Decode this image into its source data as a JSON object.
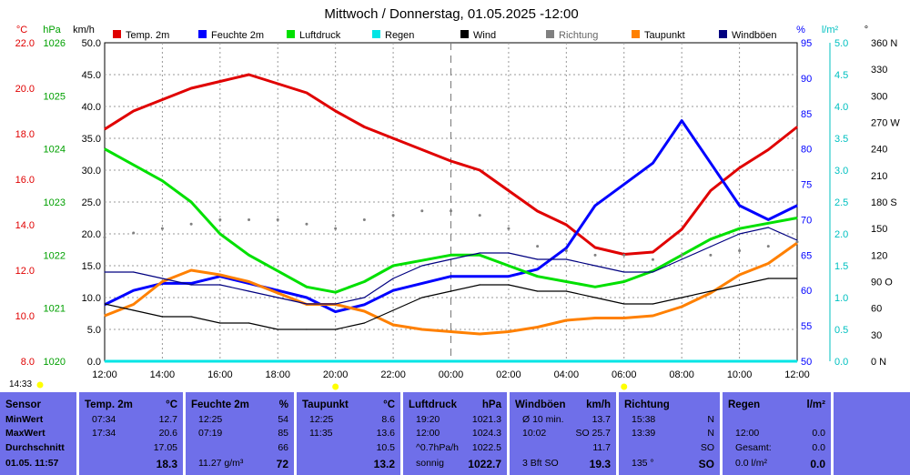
{
  "title": "Mittwoch / Donnerstag, 01.05.2025  -12:00",
  "axes": {
    "temp_unit": "°C",
    "hpa_unit": "hPa",
    "kmh_unit": "km/h",
    "pct_unit": "%",
    "rain_unit": "l/m²",
    "dir_unit": "°",
    "temp_ticks": [
      "22.0",
      "20.0",
      "18.0",
      "16.0",
      "14.0",
      "12.0",
      "10.0",
      "8.0"
    ],
    "hpa_ticks": [
      "1026",
      "1025",
      "1024",
      "1023",
      "1022",
      "1021",
      "1020"
    ],
    "kmh_ticks": [
      "50.0",
      "45.0",
      "40.0",
      "35.0",
      "30.0",
      "25.0",
      "20.0",
      "15.0",
      "10.0",
      "5.0",
      "0.0"
    ],
    "pct_ticks": [
      "95",
      "90",
      "85",
      "80",
      "75",
      "70",
      "65",
      "60",
      "55",
      "50"
    ],
    "rain_ticks": [
      "5.0",
      "4.5",
      "4.0",
      "3.5",
      "3.0",
      "2.5",
      "2.0",
      "1.5",
      "1.0",
      "0.5",
      "0.0"
    ],
    "dir_ticks": [
      "360 N",
      "330",
      "300",
      "270 W",
      "240",
      "210",
      "180 S",
      "150",
      "120",
      "90 O",
      "60",
      "30",
      "0 N"
    ],
    "x_ticks": [
      "12:00",
      "14:00",
      "16:00",
      "18:00",
      "20:00",
      "22:00",
      "00:00",
      "02:00",
      "04:00",
      "06:00",
      "08:00",
      "10:00",
      "12:00"
    ]
  },
  "sun_times": {
    "rise": "06:00",
    "set": "20:00"
  },
  "current_time_label": "14:33",
  "colors": {
    "temp": "#e00000",
    "humidity": "#0000ff",
    "pressure": "#00e000",
    "rain": "#00e5e5",
    "wind": "#000000",
    "direction": "#808080",
    "dewpoint": "#ff8000",
    "gusts": "#000080",
    "panel": "#6f6fe9"
  },
  "legend": [
    {
      "label": "Temp. 2m",
      "color": "#e00000"
    },
    {
      "label": "Feuchte 2m",
      "color": "#0000ff"
    },
    {
      "label": "Luftdruck",
      "color": "#00e000"
    },
    {
      "label": "Regen",
      "color": "#00e5e5"
    },
    {
      "label": "Wind",
      "color": "#000000"
    },
    {
      "label": "Richtung",
      "color": "#808080"
    },
    {
      "label": "Taupunkt",
      "color": "#ff8000"
    },
    {
      "label": "Windböen",
      "color": "#000080"
    }
  ],
  "chart_data": {
    "type": "line",
    "title": "Mittwoch / Donnerstag, 01.05.2025  -12:00",
    "x": [
      0,
      1,
      2,
      3,
      4,
      5,
      6,
      7,
      8,
      9,
      10,
      11,
      12,
      13,
      14,
      15,
      16,
      17,
      18,
      19,
      20,
      21,
      22,
      23,
      24
    ],
    "x_unit": "hours since 12:00",
    "series": [
      {
        "name": "Temp. 2m",
        "unit": "°C",
        "axis": "temp",
        "values": [
          18.2,
          19.0,
          19.5,
          20.0,
          20.3,
          20.6,
          20.2,
          19.8,
          19.0,
          18.3,
          17.8,
          17.3,
          16.8,
          16.4,
          15.5,
          14.6,
          14.0,
          13.0,
          12.7,
          12.8,
          13.8,
          15.5,
          16.5,
          17.3,
          18.3
        ]
      },
      {
        "name": "Feuchte 2m",
        "unit": "%",
        "axis": "pct",
        "values": [
          58,
          60,
          61,
          61,
          62,
          61,
          60,
          59,
          57,
          58,
          60,
          61,
          62,
          62,
          62,
          63,
          66,
          72,
          75,
          78,
          84,
          78,
          72,
          70,
          72
        ]
      },
      {
        "name": "Luftdruck",
        "unit": "hPa",
        "axis": "hpa",
        "values": [
          1024.0,
          1023.7,
          1023.4,
          1023.0,
          1022.4,
          1022.0,
          1021.7,
          1021.4,
          1021.3,
          1021.5,
          1021.8,
          1021.9,
          1022.0,
          1022.0,
          1021.8,
          1021.6,
          1021.5,
          1021.4,
          1021.5,
          1021.7,
          1022.0,
          1022.3,
          1022.5,
          1022.6,
          1022.7
        ]
      },
      {
        "name": "Taupunkt",
        "unit": "°C",
        "axis": "temp",
        "values": [
          10.0,
          10.5,
          11.5,
          12.0,
          11.8,
          11.5,
          11.0,
          10.5,
          10.5,
          10.2,
          9.6,
          9.4,
          9.3,
          9.2,
          9.3,
          9.5,
          9.8,
          9.9,
          9.9,
          10.0,
          10.4,
          11.0,
          11.8,
          12.3,
          13.2
        ]
      },
      {
        "name": "Wind",
        "unit": "km/h",
        "axis": "kmh",
        "values": [
          9,
          8,
          7,
          7,
          6,
          6,
          5,
          5,
          5,
          6,
          8,
          10,
          11,
          12,
          12,
          11,
          11,
          10,
          9,
          9,
          10,
          11,
          12,
          13,
          13
        ]
      },
      {
        "name": "Windböen",
        "unit": "km/h",
        "axis": "kmh",
        "values": [
          14,
          14,
          13,
          12,
          12,
          11,
          10,
          9,
          9,
          10,
          13,
          15,
          16,
          17,
          17,
          16,
          16,
          15,
          14,
          14,
          16,
          18,
          20,
          21,
          19
        ]
      },
      {
        "name": "Richtung",
        "unit": "°",
        "axis": "dir",
        "values": [
          140,
          145,
          150,
          155,
          160,
          160,
          160,
          155,
          150,
          160,
          165,
          170,
          170,
          165,
          150,
          130,
          125,
          120,
          120,
          115,
          120,
          120,
          125,
          130,
          135
        ]
      },
      {
        "name": "Regen",
        "unit": "l/m²",
        "axis": "rain",
        "values": [
          0,
          0,
          0,
          0,
          0,
          0,
          0,
          0,
          0,
          0,
          0,
          0,
          0,
          0,
          0,
          0,
          0,
          0,
          0,
          0,
          0,
          0,
          0,
          0,
          0
        ]
      }
    ],
    "ranges": {
      "temp": [
        8,
        22
      ],
      "hpa": [
        1020,
        1026
      ],
      "kmh": [
        0,
        50
      ],
      "pct": [
        50,
        95
      ],
      "rain": [
        0,
        5
      ],
      "dir": [
        0,
        360
      ]
    },
    "grid": true,
    "legend_position": "top"
  },
  "panel": {
    "sensor": {
      "header": "Sensor",
      "rows": [
        "MinWert",
        "MaxWert",
        "Durchschnitt",
        "01.05. 11:57"
      ]
    },
    "columns": [
      {
        "title": "Temp. 2m",
        "unit": "°C",
        "rows": [
          [
            "07:34",
            "12.7"
          ],
          [
            "17:34",
            "20.6"
          ],
          [
            "",
            "17.05"
          ],
          [
            "",
            "18.3"
          ]
        ]
      },
      {
        "title": "Feuchte 2m",
        "unit": "%",
        "rows": [
          [
            "12:25",
            "54"
          ],
          [
            "07:19",
            "85"
          ],
          [
            "",
            "66"
          ],
          [
            "11.27 g/m³",
            "72"
          ]
        ]
      },
      {
        "title": "Taupunkt",
        "unit": "°C",
        "rows": [
          [
            "12:25",
            "8.6"
          ],
          [
            "11:35",
            "13.6"
          ],
          [
            "",
            "10.5"
          ],
          [
            "",
            "13.2"
          ]
        ]
      },
      {
        "title": "Luftdruck",
        "unit": "hPa",
        "rows": [
          [
            "19:20",
            "1021.3"
          ],
          [
            "12:00",
            "1024.3"
          ],
          [
            "^0.7hPa/h",
            "1022.5"
          ],
          [
            "sonnig",
            "1022.7"
          ]
        ]
      },
      {
        "title": "Windböen",
        "unit": "km/h",
        "rows": [
          [
            "Ø 10 min.",
            "13.7"
          ],
          [
            "10:02",
            "SO 25.7"
          ],
          [
            "",
            "11.7"
          ],
          [
            "3 Bft SO",
            "19.3"
          ]
        ]
      },
      {
        "title": "Richtung",
        "unit": "",
        "rows": [
          [
            "15:38",
            "N"
          ],
          [
            "13:39",
            "N"
          ],
          [
            "",
            "SO"
          ],
          [
            "135 °",
            "SO"
          ]
        ]
      },
      {
        "title": "Regen",
        "unit": "l/m²",
        "rows": [
          [
            "",
            ""
          ],
          [
            "12:00",
            "0.0"
          ],
          [
            "Gesamt:",
            "0.0"
          ],
          [
            "0.0 l/m²",
            "0.0"
          ]
        ]
      }
    ]
  }
}
